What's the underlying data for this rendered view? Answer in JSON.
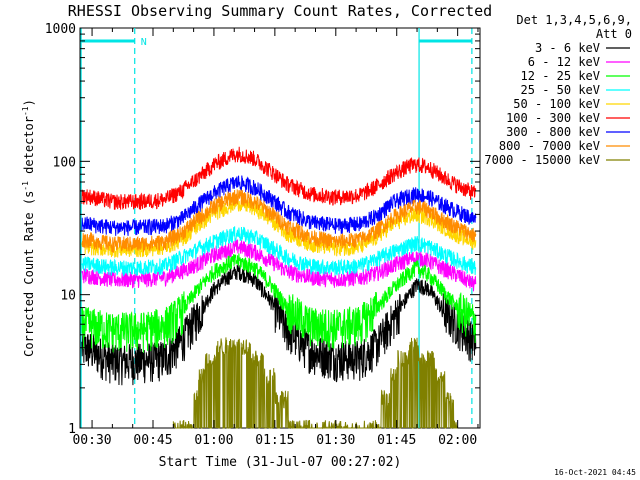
{
  "chart_data": {
    "type": "line",
    "title": "RHESSI Observing Summary Count Rates, Corrected",
    "xlabel": "Start Time (31-Jul-07 00:27:02)",
    "ylabel": "Corrected Count Rate (s",
    "ylabel_sup1": "-1",
    "ylabel_mid": " detector",
    "ylabel_sup2": "-1",
    "ylabel_end": ")",
    "y_scale": "log",
    "ylim": [
      1,
      1000
    ],
    "xlim_minutes": [
      27.03,
      125.5
    ],
    "x_tick_labels": [
      {
        "label": "00:30",
        "minute": 30
      },
      {
        "label": "00:45",
        "minute": 45
      },
      {
        "label": "01:00",
        "minute": 60
      },
      {
        "label": "01:15",
        "minute": 75
      },
      {
        "label": "01:30",
        "minute": 90
      },
      {
        "label": "01:45",
        "minute": 105
      },
      {
        "label": "02:00",
        "minute": 120
      }
    ],
    "y_tick_labels": [
      {
        "label": "1",
        "value": 1
      },
      {
        "label": "10",
        "value": 10
      },
      {
        "label": "100",
        "value": 100
      },
      {
        "label": "1000",
        "value": 1000
      }
    ],
    "legend_header": [
      "Det 1,3,4,5,6,9,",
      "Att 0"
    ],
    "legend_placement": "right",
    "series": [
      {
        "name": "3 - 6 keV",
        "color": "#000000",
        "x_minutes": [
          29,
          35,
          42,
          48,
          52,
          56,
          60,
          64,
          66,
          70,
          74,
          78,
          84,
          90,
          96,
          100,
          104,
          108,
          110,
          113,
          116,
          120,
          124
        ],
        "values": [
          4,
          3.2,
          3.2,
          3.4,
          4.5,
          7,
          11,
          14,
          15,
          13,
          9,
          5.5,
          3.8,
          3.4,
          3.4,
          4.2,
          6.5,
          10,
          12,
          11,
          8,
          6,
          4.5
        ]
      },
      {
        "name": "6 - 12 keV",
        "color": "#ff00ff",
        "x_minutes": [
          29,
          35,
          42,
          48,
          52,
          56,
          60,
          64,
          66,
          70,
          74,
          78,
          84,
          90,
          96,
          100,
          104,
          108,
          110,
          113,
          116,
          120,
          124
        ],
        "values": [
          14,
          13,
          13,
          13.5,
          15,
          17,
          20,
          22,
          23,
          21,
          18,
          15,
          13.5,
          13,
          13.5,
          14.5,
          16.5,
          18.5,
          19,
          18,
          16,
          14,
          12
        ]
      },
      {
        "name": "12 - 25 keV",
        "color": "#00ff00",
        "x_minutes": [
          29,
          35,
          42,
          48,
          52,
          56,
          60,
          64,
          66,
          70,
          74,
          78,
          84,
          90,
          96,
          100,
          104,
          108,
          110,
          113,
          116,
          120,
          124
        ],
        "values": [
          6,
          5.5,
          5.5,
          6,
          7.5,
          11,
          15,
          17.5,
          18,
          16,
          12,
          8,
          6,
          5.8,
          6.2,
          8,
          11,
          14.5,
          16,
          14,
          11,
          8,
          6.5
        ]
      },
      {
        "name": "25 - 50 keV",
        "color": "#00ffff",
        "x_minutes": [
          29,
          35,
          42,
          48,
          52,
          56,
          60,
          64,
          66,
          70,
          74,
          78,
          84,
          90,
          96,
          100,
          104,
          108,
          110,
          113,
          116,
          120,
          124
        ],
        "values": [
          17,
          16,
          16,
          16.5,
          19,
          22,
          25,
          28,
          29,
          27,
          23,
          19,
          16.5,
          16,
          16.5,
          18.5,
          21,
          23.5,
          24.5,
          23,
          20.5,
          18,
          16
        ]
      },
      {
        "name": "50 - 100 keV",
        "color": "#ffd700",
        "x_minutes": [
          29,
          35,
          42,
          48,
          52,
          56,
          60,
          64,
          66,
          70,
          74,
          78,
          84,
          90,
          96,
          100,
          104,
          108,
          110,
          113,
          116,
          120,
          124
        ],
        "values": [
          23,
          22,
          22,
          23,
          26,
          33,
          41,
          47,
          49,
          45,
          37,
          29,
          24,
          22.5,
          23,
          27,
          34,
          38.5,
          40,
          38,
          33,
          28,
          25
        ]
      },
      {
        "name": "100 - 300 keV",
        "color": "#ff0000",
        "x_minutes": [
          29,
          35,
          42,
          48,
          52,
          56,
          60,
          64,
          66,
          70,
          74,
          78,
          84,
          90,
          96,
          100,
          104,
          108,
          110,
          113,
          116,
          120,
          124
        ],
        "values": [
          55,
          50,
          50,
          52,
          60,
          75,
          95,
          110,
          115,
          105,
          85,
          68,
          57,
          54,
          56,
          65,
          80,
          92,
          95,
          90,
          78,
          66,
          58
        ]
      },
      {
        "name": "300 - 800 keV",
        "color": "#0000ff",
        "x_minutes": [
          29,
          35,
          42,
          48,
          52,
          56,
          60,
          64,
          66,
          70,
          74,
          78,
          84,
          90,
          96,
          100,
          104,
          108,
          110,
          113,
          116,
          120,
          124
        ],
        "values": [
          34,
          32,
          32,
          33,
          37,
          47,
          58,
          67,
          70,
          64,
          53,
          42,
          35,
          33,
          34,
          39,
          49,
          55,
          57,
          54,
          48,
          42,
          37
        ]
      },
      {
        "name": "800 - 7000 keV",
        "color": "#ff8c00",
        "x_minutes": [
          29,
          35,
          42,
          48,
          52,
          56,
          60,
          64,
          66,
          70,
          74,
          78,
          84,
          90,
          96,
          100,
          104,
          108,
          110,
          113,
          116,
          120,
          124
        ],
        "values": [
          26,
          24,
          24,
          25,
          29,
          37,
          46,
          53,
          55,
          50,
          41,
          33,
          27,
          25,
          26,
          30,
          38,
          44,
          46,
          43,
          37,
          32,
          28
        ]
      },
      {
        "name": "7000 - 15000 keV",
        "color": "#808000",
        "x_minutes": [
          50,
          55,
          56,
          58,
          60,
          62,
          64,
          66,
          68,
          70,
          72,
          74,
          76,
          78,
          80,
          100,
          102,
          104,
          106,
          108,
          110,
          112,
          114,
          116,
          118,
          120
        ],
        "values": [
          1,
          1.2,
          2,
          3,
          3.5,
          4.5,
          4.5,
          4.5,
          4,
          3.5,
          3,
          2.5,
          1.8,
          1.3,
          1,
          1,
          1.5,
          2.5,
          3.2,
          3.8,
          3.8,
          3.5,
          3,
          2.5,
          1.6,
          1
        ]
      }
    ],
    "attenuator_marks": [
      {
        "type": "solid",
        "minute": 27.3
      },
      {
        "type": "dashed",
        "minute": 40.5
      },
      {
        "type": "solid",
        "minute": 110.5
      },
      {
        "type": "dashed",
        "minute": 123.5
      }
    ],
    "night_bars": [
      {
        "start_minute": 27.3,
        "end_minute": 40.5
      },
      {
        "start_minute": 110.5,
        "end_minute": 123.5
      }
    ],
    "night_label": "N",
    "night_label_minute": 42,
    "colors": {
      "guide_lines": "#00e5e5"
    }
  },
  "timestamp": "16-Oct-2021 04:45"
}
